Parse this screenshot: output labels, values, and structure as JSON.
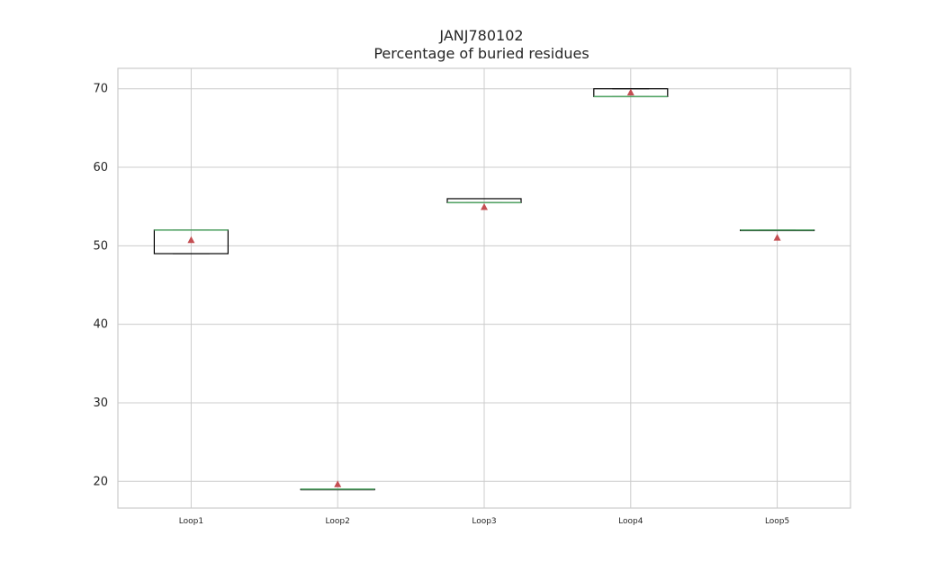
{
  "chart_data": {
    "type": "box",
    "title": "JANJ780102",
    "subtitle": "Percentage of buried residues",
    "xlabel": "",
    "ylabel": "",
    "ylim": [
      16.6,
      72.6
    ],
    "yticks": [
      20,
      30,
      40,
      50,
      60,
      70
    ],
    "grid": true,
    "categories": [
      "Loop1",
      "Loop2",
      "Loop3",
      "Loop4",
      "Loop5"
    ],
    "boxes": [
      {
        "name": "Loop1",
        "q1": 49.0,
        "median": 52.0,
        "q3": 52.0,
        "whisker_low": 49.0,
        "whisker_high": 52.0,
        "mean": 50.7
      },
      {
        "name": "Loop2",
        "q1": 19.0,
        "median": 19.0,
        "q3": 19.0,
        "whisker_low": 19.0,
        "whisker_high": 19.0,
        "mean": 19.6
      },
      {
        "name": "Loop3",
        "q1": 55.5,
        "median": 55.5,
        "q3": 56.0,
        "whisker_low": 55.5,
        "whisker_high": 56.0,
        "mean": 54.9
      },
      {
        "name": "Loop4",
        "q1": 69.0,
        "median": 69.0,
        "q3": 70.0,
        "whisker_low": 69.0,
        "whisker_high": 70.0,
        "mean": 69.5
      },
      {
        "name": "Loop5",
        "q1": 52.0,
        "median": 52.0,
        "q3": 52.0,
        "whisker_low": 52.0,
        "whisker_high": 52.0,
        "mean": 51.0
      }
    ],
    "colors": {
      "box": "#000000",
      "median": "#55a868",
      "mean": "#c44e52",
      "grid": "#cccccc",
      "frame": "#cccccc",
      "text": "#262626"
    }
  }
}
